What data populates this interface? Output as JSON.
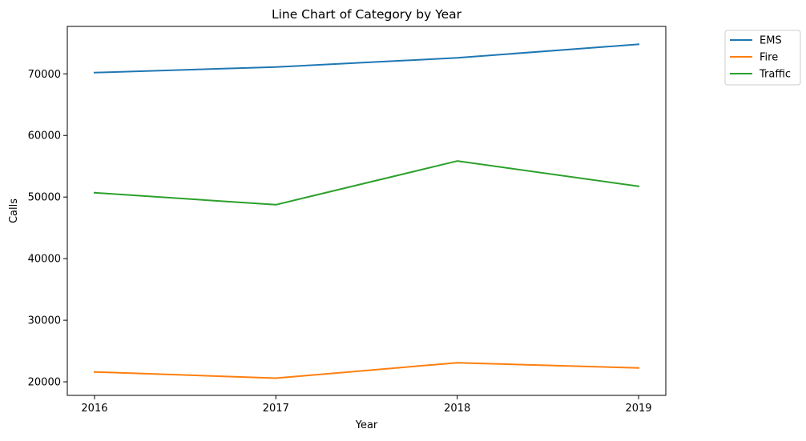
{
  "chart_data": {
    "type": "line",
    "title": "Line Chart of Category by Year",
    "xlabel": "Year",
    "ylabel": "Calls",
    "x": [
      2016,
      2017,
      2018,
      2019
    ],
    "x_tick_labels": [
      "2016",
      "2017",
      "2018",
      "2019"
    ],
    "y_ticks": [
      20000,
      30000,
      40000,
      50000,
      60000,
      70000
    ],
    "y_tick_labels": [
      "20000",
      "30000",
      "40000",
      "50000",
      "60000",
      "70000"
    ],
    "xlim": [
      2015.85,
      2019.15
    ],
    "ylim": [
      17800,
      77700
    ],
    "grid": false,
    "legend_position": "outside top-right",
    "series": [
      {
        "name": "EMS",
        "color": "#1f77b4",
        "values": [
          70200,
          71100,
          72600,
          74800
        ]
      },
      {
        "name": "Fire",
        "color": "#ff7f0e",
        "values": [
          21600,
          20600,
          23100,
          22250
        ]
      },
      {
        "name": "Traffic",
        "color": "#2ca02c",
        "values": [
          50700,
          48750,
          55850,
          51750
        ]
      }
    ]
  }
}
